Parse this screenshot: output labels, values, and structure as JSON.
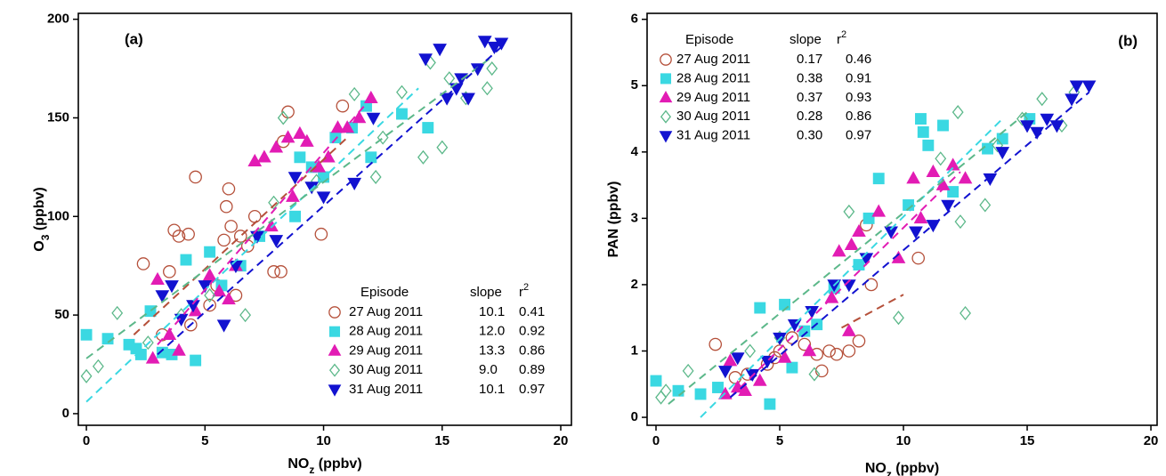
{
  "chart_data": [
    {
      "type": "scatter",
      "panel_label": "(a)",
      "xlabel": {
        "main": "NO",
        "sub": "z",
        "rest": " (ppbv)"
      },
      "ylabel": {
        "main": "O",
        "sub": "3",
        "rest": " (ppbv)"
      },
      "xlim": [
        -0.34,
        20.45
      ],
      "ylim": [
        -5.9,
        203
      ],
      "xticks": [
        0,
        5,
        10,
        15,
        20
      ],
      "yticks": [
        0,
        50,
        100,
        150,
        200
      ],
      "legend_position": "lower right",
      "legend_header": {
        "episode": "Episode",
        "slope": "slope",
        "r": "r",
        "sup": "2"
      },
      "series": [
        {
          "name": "27 Aug 2011",
          "color": "#b5503a",
          "marker": "circle",
          "filled": false,
          "slope": "10.1",
          "r2": "0.41",
          "x": [
            2.4,
            3.5,
            3.7,
            3.9,
            4.3,
            4.6,
            5.2,
            5.8,
            5.9,
            6.0,
            6.1,
            6.5,
            6.8,
            7.1,
            7.9,
            8.2,
            8.5,
            8.3,
            9.9,
            10.8,
            3.2,
            4.4,
            5.5,
            6.3
          ],
          "values": [
            76,
            72,
            93,
            90,
            91,
            120,
            55,
            88,
            105,
            114,
            95,
            90,
            85,
            100,
            72,
            72,
            153,
            138,
            91,
            156,
            40,
            45,
            65,
            60
          ],
          "fit_x": [
            2,
            11
          ],
          "fit_y": [
            40,
            140
          ]
        },
        {
          "name": "28 Aug 2011",
          "color": "#3ad8e2",
          "marker": "square",
          "filled": true,
          "slope": "12.0",
          "r2": "0.92",
          "x": [
            0,
            0.9,
            1.8,
            2.1,
            2.3,
            2.7,
            3.2,
            3.6,
            4.2,
            4.6,
            5.2,
            5.7,
            6.5,
            7.3,
            8.8,
            9.0,
            9.5,
            10.5,
            11.2,
            11.8,
            13.3,
            14.4,
            12.0,
            10.0
          ],
          "values": [
            40,
            38,
            35,
            33,
            30,
            52,
            31,
            30,
            78,
            27,
            82,
            65,
            75,
            90,
            100,
            130,
            125,
            140,
            145,
            156,
            152,
            145,
            130,
            120
          ],
          "fit_x": [
            0,
            14
          ],
          "fit_y": [
            6,
            165
          ]
        },
        {
          "name": "29 Aug 2011",
          "color": "#e21cb4",
          "marker": "triangle-up",
          "filled": true,
          "slope": "13.3",
          "r2": "0.86",
          "x": [
            2.8,
            3.0,
            3.5,
            3.9,
            4.6,
            5.2,
            5.6,
            6.0,
            6.3,
            7.1,
            7.5,
            8.0,
            8.5,
            9.0,
            9.3,
            10.2,
            10.6,
            11.0,
            11.5,
            12.0,
            7.8,
            8.7,
            9.8
          ],
          "values": [
            28,
            68,
            40,
            32,
            52,
            70,
            62,
            58,
            75,
            128,
            130,
            135,
            140,
            142,
            138,
            130,
            145,
            145,
            150,
            160,
            95,
            110,
            125
          ],
          "fit_x": [
            3,
            12
          ],
          "fit_y": [
            35,
            160
          ]
        },
        {
          "name": "30 Aug 2011",
          "color": "#5cb88a",
          "marker": "diamond",
          "filled": false,
          "slope": "9.0",
          "r2": "0.89",
          "x": [
            0,
            0.5,
            1.3,
            2.6,
            4.0,
            5.2,
            6.7,
            7.9,
            8.3,
            9.7,
            11.3,
            12.2,
            13.3,
            14.2,
            15.0,
            15.3,
            16.0,
            16.9,
            17.1,
            14.5,
            12.5
          ],
          "values": [
            19,
            24,
            51,
            36,
            50,
            60,
            50,
            107,
            150,
            118,
            162,
            120,
            163,
            130,
            135,
            170,
            160,
            165,
            175,
            178,
            140
          ],
          "fit_x": [
            0,
            17
          ],
          "fit_y": [
            28,
            180
          ]
        },
        {
          "name": "31 Aug 2011",
          "color": "#1212d0",
          "marker": "triangle-down",
          "filled": true,
          "slope": "10.1",
          "r2": "0.97",
          "x": [
            3.2,
            3.6,
            4.0,
            4.5,
            5.0,
            5.8,
            6.3,
            7.2,
            8.0,
            8.8,
            9.5,
            10.0,
            11.3,
            12.1,
            14.3,
            14.9,
            15.2,
            15.6,
            16.1,
            16.5,
            16.8,
            17.2,
            17.5,
            15.8
          ],
          "values": [
            60,
            65,
            48,
            55,
            65,
            45,
            75,
            90,
            88,
            120,
            115,
            110,
            117,
            150,
            180,
            185,
            160,
            165,
            160,
            175,
            189,
            186,
            188,
            170
          ],
          "fit_x": [
            3,
            17.5
          ],
          "fit_y": [
            30,
            186
          ]
        }
      ]
    },
    {
      "type": "scatter",
      "panel_label": "(b)",
      "xlabel": {
        "main": "NO",
        "sub": "z",
        "rest": " (ppbv)"
      },
      "ylabel": {
        "main": "PAN",
        "sub": "",
        "rest": " (ppbv)"
      },
      "xlim": [
        -0.36,
        20.25
      ],
      "ylim": [
        -0.12,
        6.09
      ],
      "xticks": [
        0,
        5,
        10,
        15,
        20
      ],
      "yticks": [
        0,
        1,
        2,
        3,
        4,
        5,
        6
      ],
      "legend_position": "upper left",
      "legend_header": {
        "episode": "Episode",
        "slope": "slope",
        "r": "r",
        "sup": "2"
      },
      "series": [
        {
          "name": "27 Aug 2011",
          "color": "#b5503a",
          "marker": "circle",
          "filled": false,
          "slope": "0.17",
          "r2": "0.46",
          "x": [
            2.4,
            3.7,
            4.5,
            5.0,
            5.5,
            6.0,
            6.5,
            6.7,
            7.0,
            7.3,
            7.8,
            8.2,
            8.5,
            8.7,
            10.6,
            4.8,
            3.2
          ],
          "values": [
            1.1,
            0.65,
            0.8,
            1.0,
            1.2,
            1.1,
            0.95,
            0.7,
            1.0,
            0.95,
            1.0,
            1.15,
            2.9,
            2.0,
            2.4,
            0.9,
            0.6
          ],
          "fit_x": [
            7.5,
            10
          ],
          "fit_y": [
            1.35,
            1.85
          ]
        },
        {
          "name": "28 Aug 2011",
          "color": "#3ad8e2",
          "marker": "square",
          "filled": true,
          "slope": "0.38",
          "r2": "0.91",
          "x": [
            0,
            0.9,
            1.8,
            2.5,
            4.2,
            4.6,
            5.2,
            5.5,
            6.0,
            6.5,
            7.2,
            8.2,
            8.6,
            9.0,
            10.2,
            10.7,
            10.8,
            11.0,
            11.6,
            12.0,
            13.4,
            14.0,
            15.1
          ],
          "values": [
            0.55,
            0.4,
            0.35,
            0.45,
            1.65,
            0.2,
            1.7,
            0.75,
            1.3,
            1.4,
            1.95,
            2.3,
            3.0,
            3.6,
            3.2,
            4.5,
            4.3,
            4.1,
            4.4,
            3.4,
            4.05,
            4.2,
            4.5
          ],
          "fit_x": [
            1.8,
            14
          ],
          "fit_y": [
            0,
            4.5
          ]
        },
        {
          "name": "29 Aug 2011",
          "color": "#e21cb4",
          "marker": "triangle-up",
          "filled": true,
          "slope": "0.37",
          "r2": "0.93",
          "x": [
            2.8,
            3.0,
            3.3,
            3.6,
            4.2,
            5.2,
            6.2,
            7.1,
            7.4,
            7.9,
            8.2,
            9.0,
            9.8,
            10.4,
            10.7,
            11.2,
            11.6,
            12.0,
            12.5,
            7.8
          ],
          "values": [
            0.35,
            0.85,
            0.45,
            0.4,
            0.55,
            0.9,
            1.0,
            1.8,
            2.5,
            2.6,
            2.8,
            3.1,
            2.4,
            3.6,
            3.0,
            3.7,
            3.5,
            3.8,
            3.6,
            1.3
          ],
          "fit_x": [
            3,
            12.3
          ],
          "fit_y": [
            0.3,
            3.7
          ]
        },
        {
          "name": "30 Aug 2011",
          "color": "#5cb88a",
          "marker": "diamond",
          "filled": false,
          "slope": "0.28",
          "r2": "0.86",
          "x": [
            0.2,
            0.4,
            1.3,
            3.8,
            5.0,
            6.4,
            7.8,
            9.8,
            11.5,
            12.2,
            12.5,
            13.3,
            13.8,
            14.8,
            15.6,
            16.4,
            16.9,
            12.3
          ],
          "values": [
            0.3,
            0.4,
            0.7,
            1.0,
            1.2,
            0.65,
            3.1,
            1.5,
            3.9,
            4.6,
            1.57,
            3.2,
            4.1,
            4.5,
            4.8,
            4.4,
            4.9,
            2.95
          ],
          "fit_x": [
            0.5,
            15
          ],
          "fit_y": [
            0.2,
            4.6
          ]
        },
        {
          "name": "31 Aug 2011",
          "color": "#1212d0",
          "marker": "triangle-down",
          "filled": true,
          "slope": "0.30",
          "r2": "0.97",
          "x": [
            2.8,
            3.3,
            3.9,
            4.5,
            5.0,
            5.6,
            6.3,
            7.2,
            7.8,
            8.5,
            9.5,
            10.5,
            11.2,
            11.8,
            13.5,
            14.0,
            15.0,
            15.4,
            15.8,
            16.2,
            16.8,
            17.0,
            17.5
          ],
          "values": [
            0.7,
            0.9,
            0.65,
            0.85,
            1.2,
            1.4,
            1.6,
            2.0,
            2.0,
            2.4,
            2.8,
            2.8,
            2.9,
            3.2,
            3.6,
            4.0,
            4.4,
            4.3,
            4.5,
            4.4,
            4.8,
            5.0,
            5.0
          ],
          "fit_x": [
            3,
            17.5
          ],
          "fit_y": [
            0.3,
            4.9
          ]
        }
      ]
    }
  ]
}
